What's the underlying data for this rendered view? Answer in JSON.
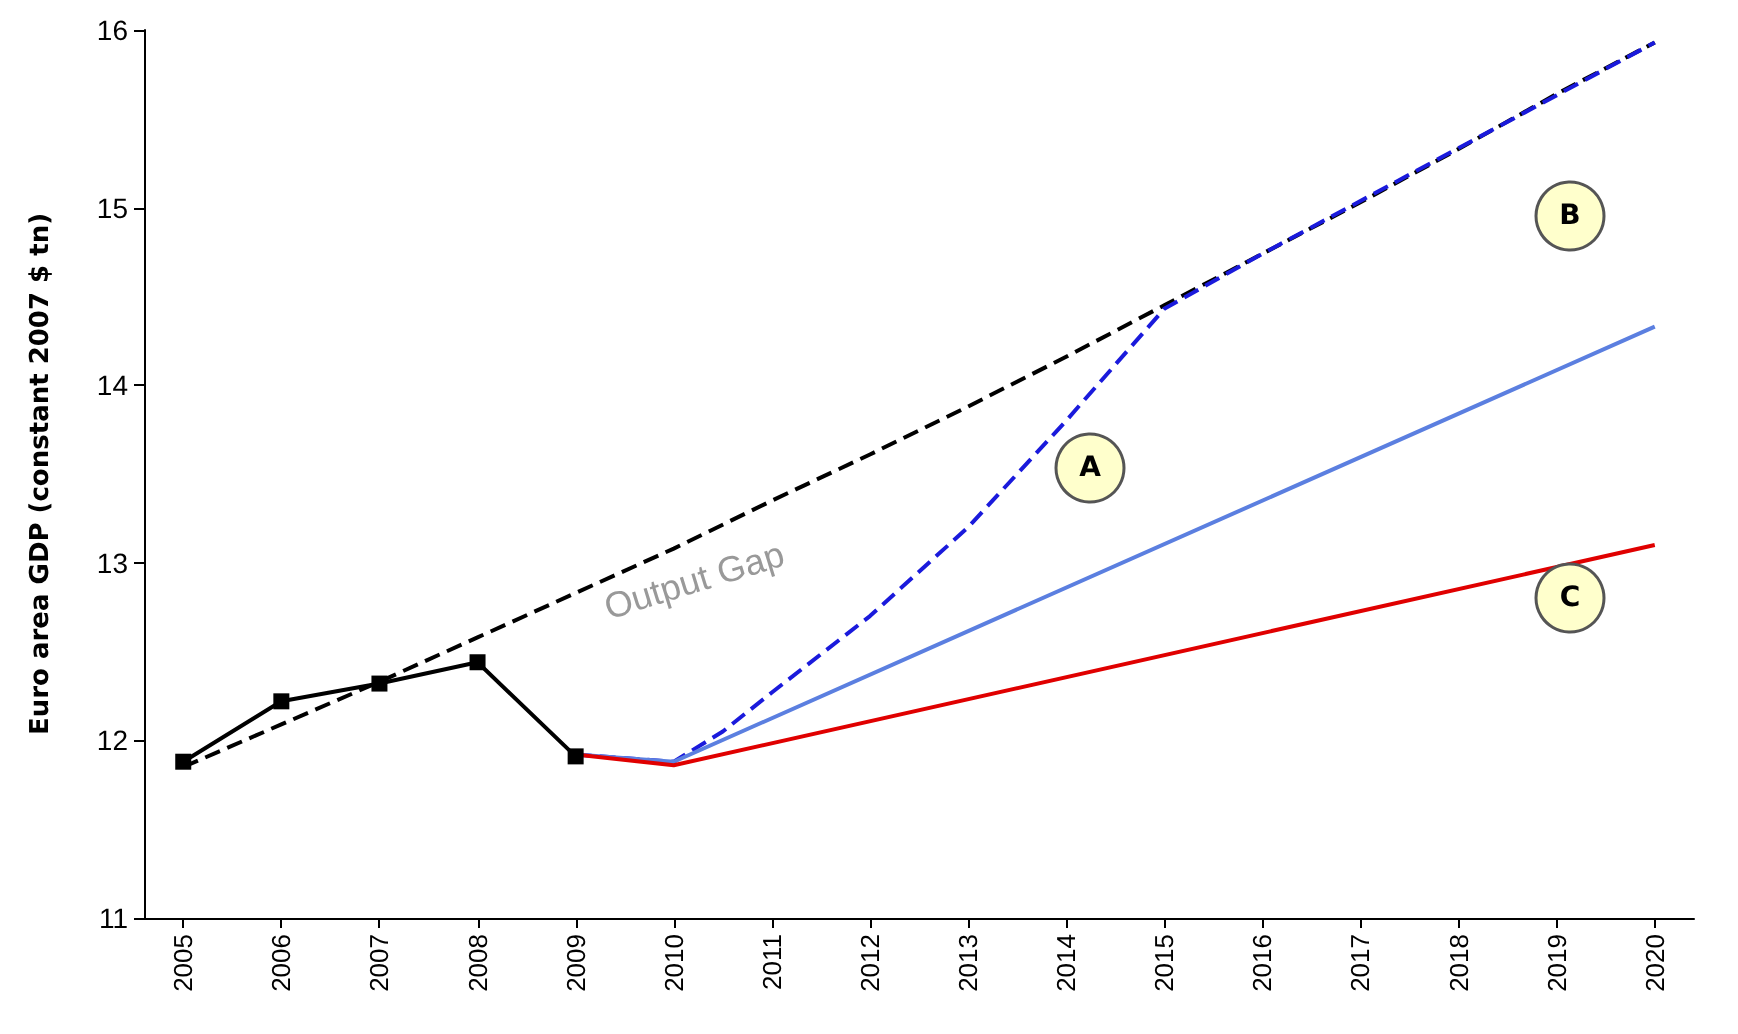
{
  "chart_data": {
    "type": "line",
    "ylabel": "Euro area GDP (constant 2007 $ tn)",
    "xlim": [
      2004.6,
      2020.4
    ],
    "xticks": [
      2005,
      2006,
      2007,
      2008,
      2009,
      2010,
      2011,
      2012,
      2013,
      2014,
      2015,
      2016,
      2017,
      2018,
      2019,
      2020
    ],
    "ylim": [
      11,
      16
    ],
    "yticks": [
      11,
      12,
      13,
      14,
      15,
      16
    ],
    "grid": false,
    "series": [
      {
        "color": "#000000",
        "line_style": "dashed",
        "marker": "none",
        "x": [
          2005,
          2006,
          2007,
          2008,
          2009,
          2010,
          2011,
          2012,
          2013,
          2014,
          2015,
          2016,
          2017,
          2018,
          2019,
          2020
        ],
        "values": [
          11.85,
          12.09,
          12.33,
          12.58,
          12.83,
          13.08,
          13.35,
          13.61,
          13.88,
          14.16,
          14.45,
          14.74,
          15.03,
          15.33,
          15.64,
          15.93
        ]
      },
      {
        "color": "#1a1adc",
        "line_style": "dashed",
        "marker": "none",
        "x": [
          2009,
          2010,
          2010.5,
          2011,
          2012,
          2013,
          2014,
          2015,
          2016,
          2020
        ],
        "values": [
          11.92,
          11.88,
          12.05,
          12.27,
          12.7,
          13.2,
          13.8,
          14.43,
          14.74,
          15.93
        ]
      },
      {
        "color": "#5b7fe0",
        "line_style": "solid",
        "marker": "none",
        "x": [
          2009,
          2010,
          2020
        ],
        "values": [
          11.92,
          11.88,
          14.33
        ]
      },
      {
        "color": "#e00000",
        "line_style": "solid",
        "marker": "none",
        "x": [
          2009,
          2010,
          2020
        ],
        "values": [
          11.92,
          11.86,
          13.1
        ]
      },
      {
        "color": "#000000",
        "line_style": "solid",
        "marker": "square",
        "x": [
          2005,
          2006,
          2007,
          2008,
          2009
        ],
        "values": [
          11.88,
          12.22,
          12.32,
          12.44,
          11.91
        ]
      }
    ],
    "annotations": [
      "A",
      "B",
      "C",
      "Output Gap"
    ]
  }
}
